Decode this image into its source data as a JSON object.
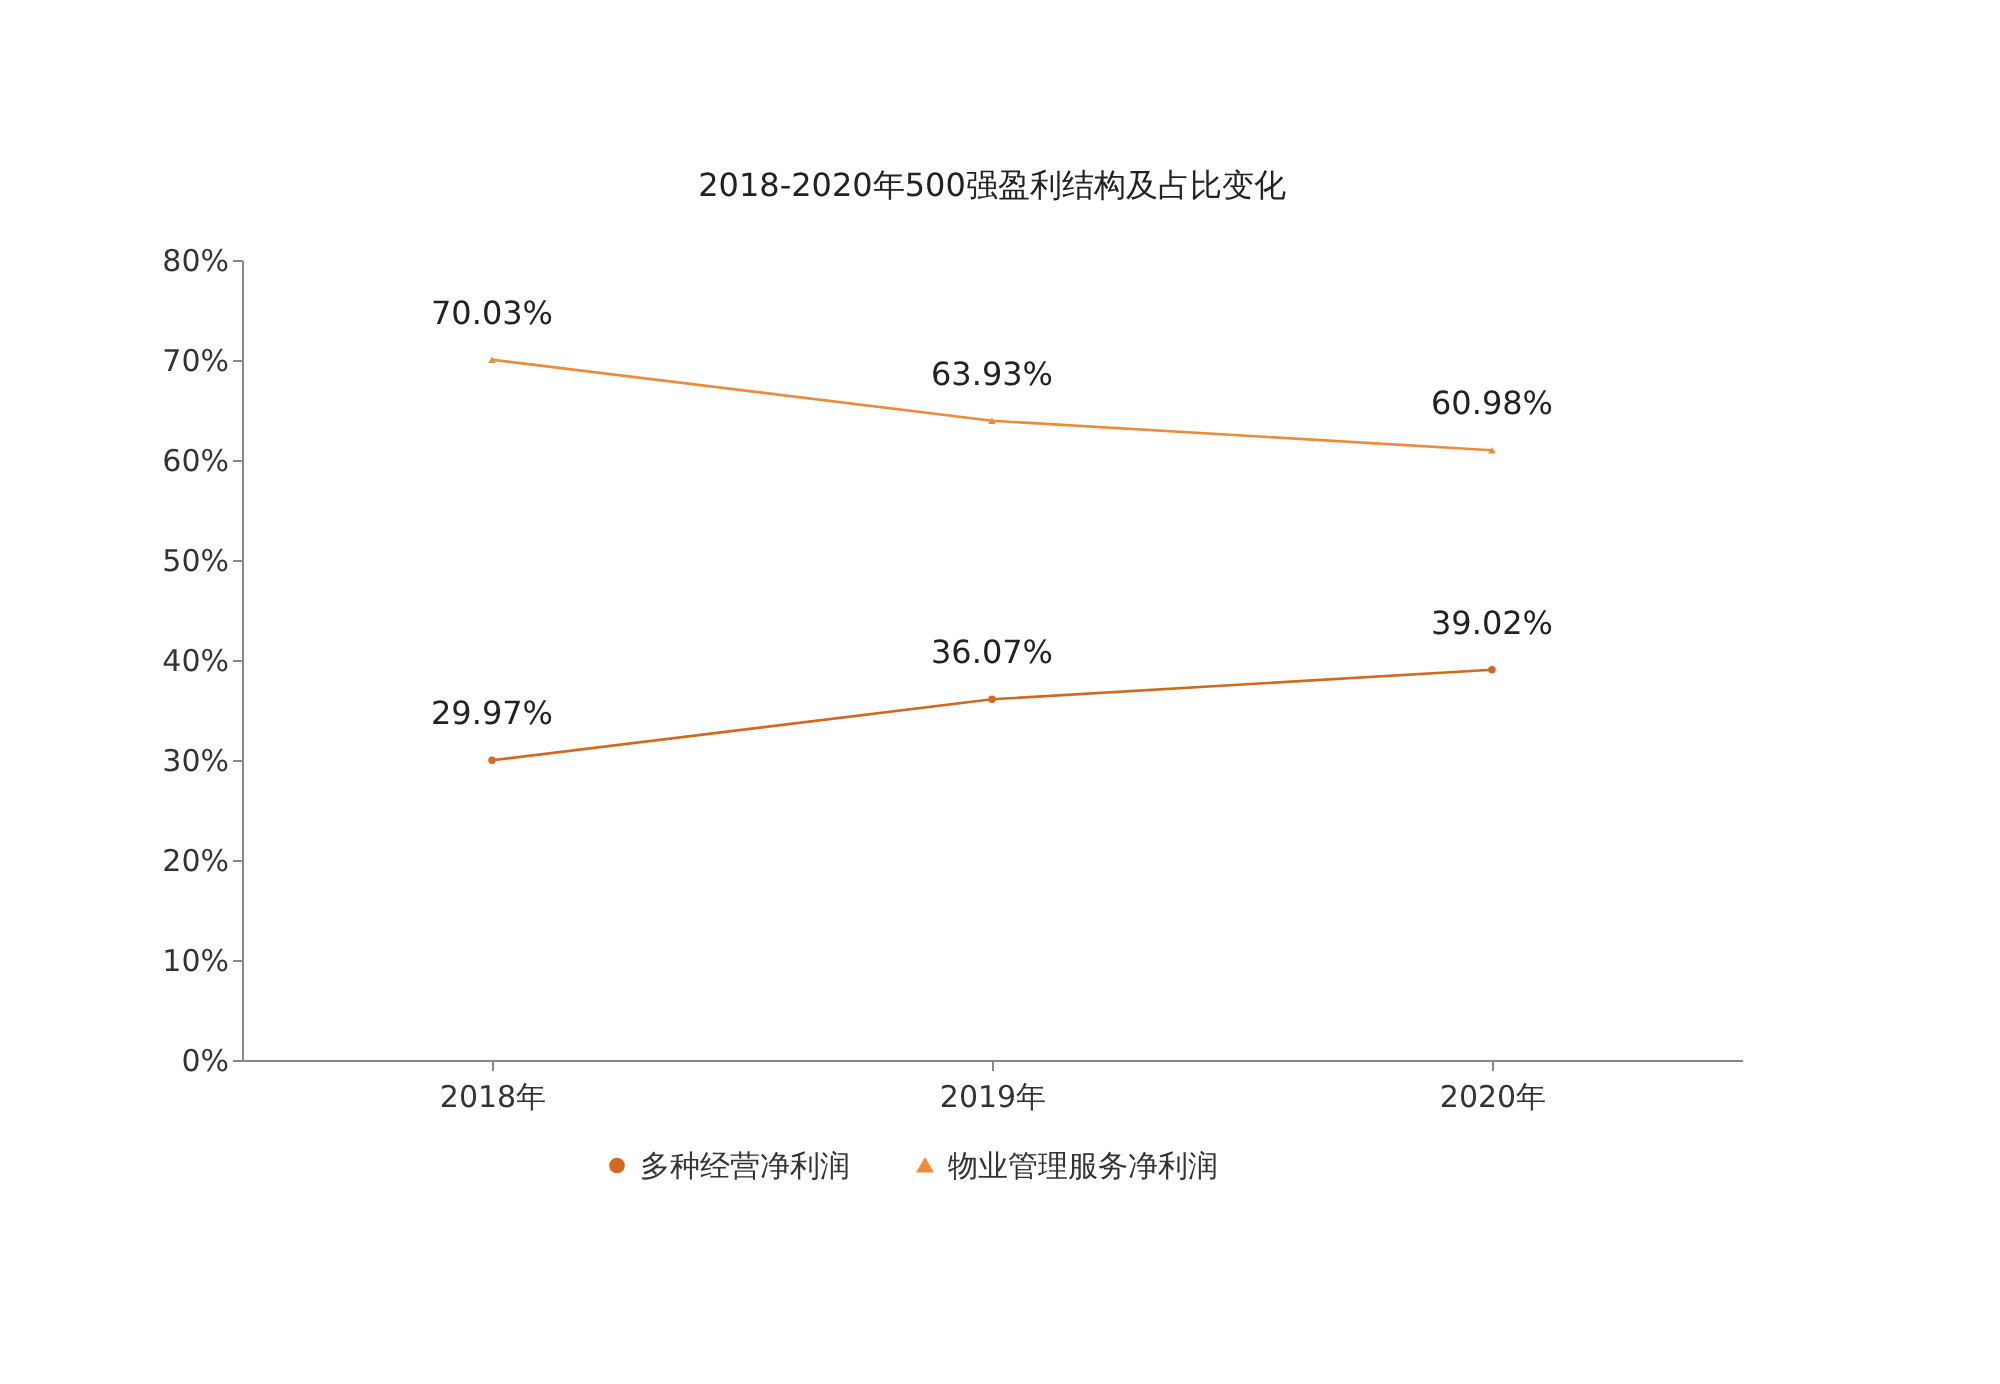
{
  "chart_data": {
    "type": "line",
    "title": "2018-2020年500强盈利结构及占比变化",
    "categories": [
      "2018年",
      "2019年",
      "2020年"
    ],
    "series": [
      {
        "name": "多种经营净利润",
        "color": "#d2691e",
        "marker": "circle",
        "values": [
          29.97,
          36.07,
          39.02
        ],
        "value_labels": [
          "29.97%",
          "36.07%",
          "39.02%"
        ]
      },
      {
        "name": "物业管理服务净利润",
        "color": "#ed8b3a",
        "marker": "triangle",
        "values": [
          70.03,
          63.93,
          60.98
        ],
        "value_labels": [
          "70.03%",
          "63.93%",
          "60.98%"
        ]
      }
    ],
    "ylim": [
      0,
      80
    ],
    "yticks": [
      {
        "value": 0,
        "label": "0%"
      },
      {
        "value": 10,
        "label": "10%"
      },
      {
        "value": 20,
        "label": "20%"
      },
      {
        "value": 30,
        "label": "30%"
      },
      {
        "value": 40,
        "label": "40%"
      },
      {
        "value": 50,
        "label": "50%"
      },
      {
        "value": 60,
        "label": "60%"
      },
      {
        "value": 70,
        "label": "70%"
      },
      {
        "value": 80,
        "label": "80%"
      }
    ],
    "grid": false,
    "legend": "bottom",
    "line_style": "solid"
  }
}
